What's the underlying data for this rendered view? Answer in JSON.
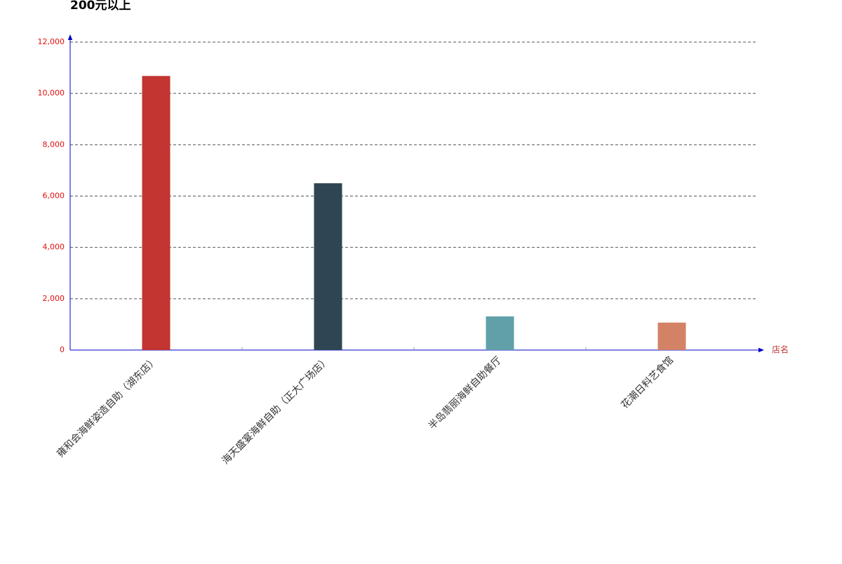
{
  "chart_data": {
    "type": "bar",
    "title": "200元以上",
    "x_label": "店名",
    "categories": [
      "雍和会海鲜姿造自助（湖东店）",
      "海天盛宴海鲜自助（正大广场店）",
      "半岛翡丽海鲜自助餐厅",
      "花潮日料艺食馆"
    ],
    "values": [
      10680,
      6500,
      1310,
      1070
    ],
    "colors": [
      "#c23531",
      "#2f4554",
      "#61a0a8",
      "#d48265"
    ],
    "ylim": [
      0,
      12000
    ],
    "yticks": [
      0,
      {
        "value": 2000,
        "label": "2,000"
      },
      {
        "value": 4000,
        "label": "4,000"
      },
      {
        "value": 6000,
        "label": "6,000"
      },
      {
        "value": 8000,
        "label": "8,000"
      },
      {
        "value": 10000,
        "label": "10,000"
      },
      {
        "value": 12000,
        "label": "12,000"
      }
    ],
    "grid": true
  }
}
